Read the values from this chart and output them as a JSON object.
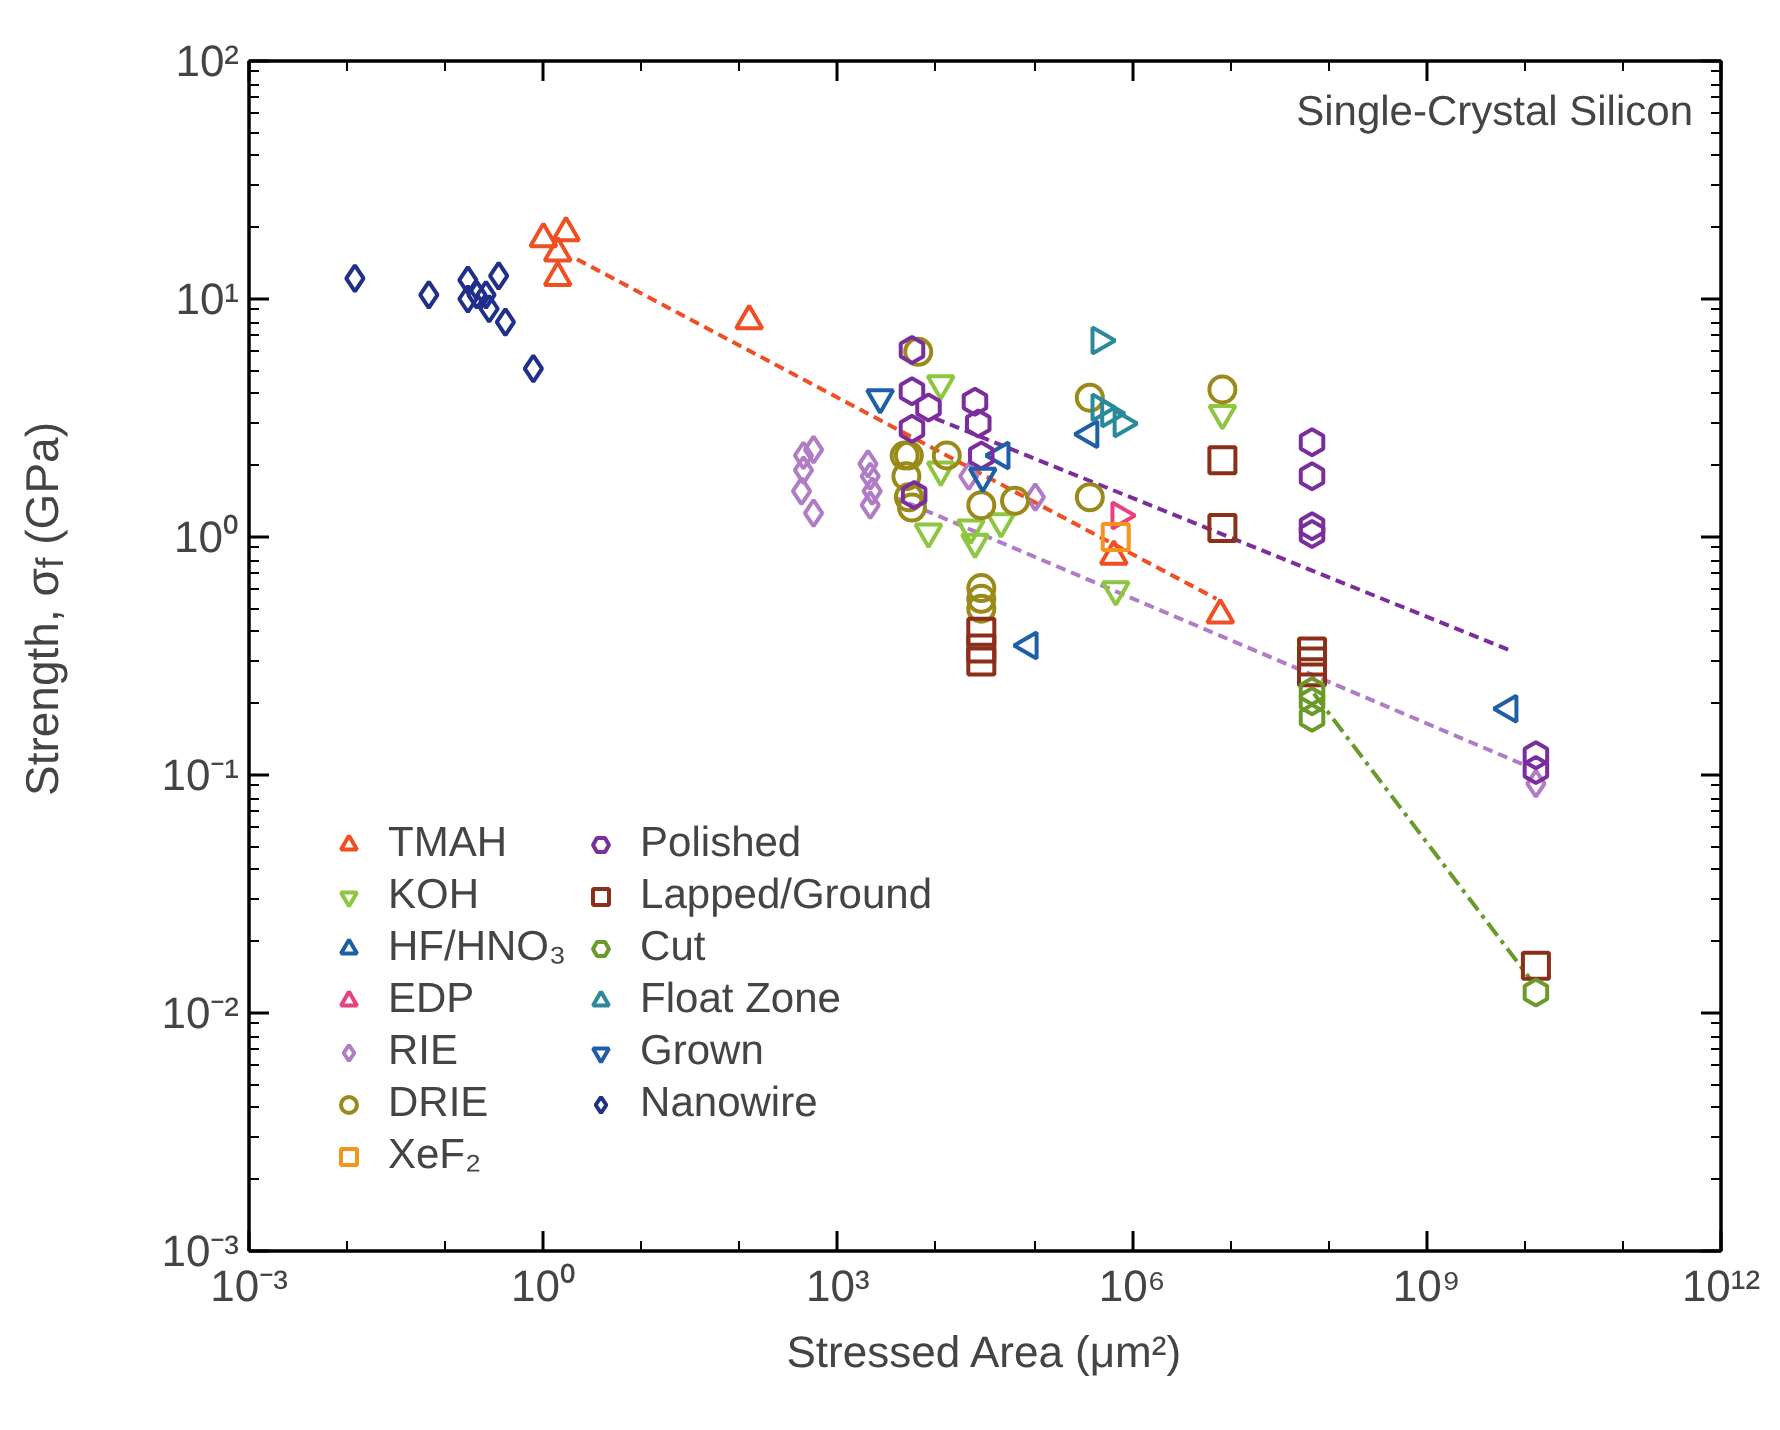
{
  "chart_data": {
    "type": "scatter",
    "xlabel": "Stressed Area (μm²)",
    "ylabel": "Strength, σ$_{f}$ (GPa)",
    "annotations": [
      "Single-Crystal Silicon"
    ],
    "log": "xy",
    "grid": false,
    "legend": "bottom left",
    "xlim": [
      0.001,
      1000000000000
    ],
    "ylim": [
      0.001,
      100
    ],
    "xticks": [
      {
        "value": 0.001,
        "label": "10⁻³"
      },
      {
        "value": 1,
        "label": "10⁰"
      },
      {
        "value": 1000,
        "label": "10³"
      },
      {
        "value": 1000000,
        "label": "10⁶"
      },
      {
        "value": 1000000000,
        "label": "10⁹"
      },
      {
        "value": 1000000000000,
        "label": "10¹²"
      }
    ],
    "yticks": [
      {
        "value": 0.001,
        "label": "10⁻³"
      },
      {
        "value": 0.01,
        "label": "10⁻²"
      },
      {
        "value": 0.1,
        "label": "10⁻¹"
      },
      {
        "value": 1,
        "label": "10⁰"
      },
      {
        "value": 10,
        "label": "10¹"
      },
      {
        "value": 100,
        "label": "10²"
      }
    ],
    "series": [
      {
        "type": "line",
        "color": "#f04e23",
        "line_style": "dashed",
        "x": [
          2.2,
          7200000
        ],
        "values": [
          14.7,
          0.55
        ]
      },
      {
        "type": "line",
        "color": "#7b2d9e",
        "line_style": "dashed",
        "x": [
          9800,
          7600000000
        ],
        "values": [
          3.15,
          0.33
        ]
      },
      {
        "type": "line",
        "color": "#b07cc6",
        "line_style": "dashed",
        "x": [
          3760,
          10000000000
        ],
        "values": [
          1.47,
          0.11
        ]
      },
      {
        "type": "line",
        "color": "#6a9a2a",
        "line_style": "dashdot",
        "x": [
          71000000,
          12000000000
        ],
        "values": [
          0.22,
          0.0135
        ]
      },
      {
        "name": "TMAH",
        "color": "#f04e23",
        "marker": "triangle",
        "x": [
          1.0,
          1.7,
          1.4,
          1.4,
          125,
          650000,
          7900000
        ],
        "values": [
          17.9,
          19,
          15.6,
          12.3,
          8.1,
          0.83,
          0.47
        ]
      },
      {
        "name": "KOH",
        "color": "#8dc63f",
        "marker": "triangle_down",
        "x": [
          11200,
          11200,
          8400,
          22700,
          25000,
          46000,
          680000,
          8300000
        ],
        "values": [
          4.4,
          1.91,
          1.05,
          1.09,
          0.95,
          1.16,
          0.6,
          3.3
        ]
      },
      {
        "name": "HF/HNO₃",
        "color": "#1f5fa8",
        "marker": "triangle_left",
        "x": [
          46000,
          370000,
          89000,
          6900000000
        ],
        "values": [
          2.2,
          2.7,
          0.35,
          0.19
        ]
      },
      {
        "name": "EDP",
        "color": "#e8417d",
        "marker": "triangle_right",
        "x": [
          750000
        ],
        "values": [
          1.23
        ]
      },
      {
        "name": "RIE",
        "color": "#b07cc6",
        "marker": "diamond",
        "x": [
          447,
          566,
          447,
          427,
          566,
          2030,
          2140,
          2240,
          2140,
          21600,
          103000,
          13000000000
        ],
        "values": [
          2.2,
          2.33,
          1.91,
          1.56,
          1.26,
          2.03,
          1.8,
          1.56,
          1.36,
          1.8,
          1.47,
          0.092
        ]
      },
      {
        "name": "DRIE",
        "color": "#9a8a1a",
        "marker": "circle",
        "x": [
          6600,
          4800,
          5300,
          5000,
          5300,
          5700,
          12900,
          29000,
          64000,
          370000,
          370000,
          29000,
          29000,
          29000,
          8300000
        ],
        "values": [
          6.0,
          2.2,
          2.2,
          1.8,
          1.47,
          1.33,
          2.2,
          1.36,
          1.42,
          1.47,
          3.85,
          0.61,
          0.55,
          0.5,
          4.17
        ]
      },
      {
        "name": "XeF₂",
        "color": "#f7941d",
        "marker": "square",
        "x": [
          680000
        ],
        "values": [
          1.0
        ]
      },
      {
        "name": "Polished",
        "color": "#7b2d9e",
        "x": [
          5700,
          5700,
          8400,
          5700,
          25000,
          27000,
          29000,
          6000,
          68000000,
          68000000,
          68000000,
          68000000,
          13000000000,
          13000000000
        ],
        "values": [
          6.1,
          4.1,
          3.5,
          2.85,
          3.7,
          3.0,
          2.2,
          1.5,
          2.5,
          1.8,
          1.11,
          1.03,
          0.121,
          0.105
        ]
      },
      {
        "name": "Lapped/Ground",
        "color": "#8b2e1a",
        "marker": "square",
        "x": [
          29000,
          29000,
          29000,
          8300000,
          8300000,
          68000000,
          68000000,
          68000000,
          13000000000
        ],
        "values": [
          0.4,
          0.34,
          0.3,
          2.1,
          1.09,
          0.33,
          0.3,
          0.27,
          0.0158
        ]
      },
      {
        "name": "Cut",
        "color": "#6a9a2a",
        "x": [
          68000000,
          68000000,
          68000000,
          13000000000
        ],
        "values": [
          0.225,
          0.204,
          0.174,
          0.0122
        ]
      },
      {
        "name": "Float Zone",
        "color": "#2a8a9a",
        "marker": "triangle_right",
        "x": [
          470000,
          470000,
          590000,
          790000
        ],
        "values": [
          6.7,
          3.5,
          3.3,
          3.0
        ]
      },
      {
        "name": "Grown",
        "color": "#1f5fa8",
        "marker": "triangle_down",
        "x": [
          2700,
          30000
        ],
        "values": [
          3.85,
          1.8
        ]
      },
      {
        "name": "Nanowire",
        "color": "#1f2f8a",
        "marker": "diamond",
        "x": [
          0.012,
          0.068,
          0.17,
          0.21,
          0.26,
          0.35,
          0.28,
          0.41,
          0.79,
          0.17
        ],
        "values": [
          12.2,
          10.4,
          12,
          10.4,
          10.4,
          12.5,
          9.1,
          8.0,
          5.1,
          10
        ]
      }
    ]
  }
}
